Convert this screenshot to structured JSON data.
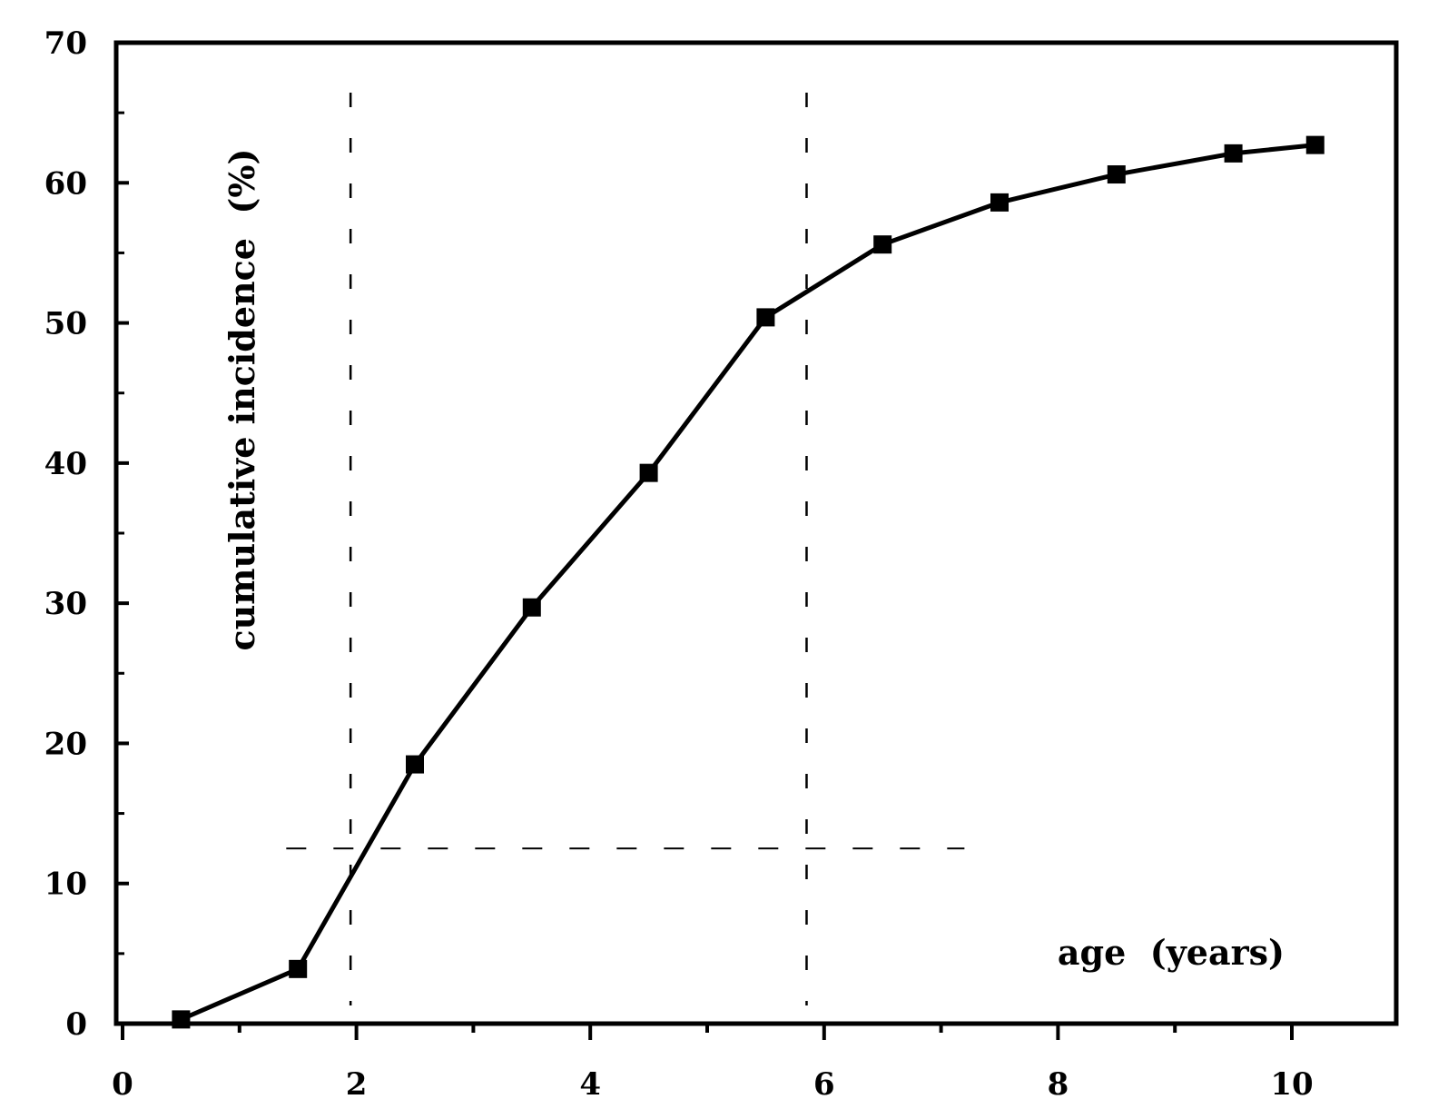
{
  "chart_data": {
    "type": "line",
    "xlabel": "age  (years)",
    "ylabel": "cumulative incidence  (%)",
    "xlim": [
      0,
      11
    ],
    "ylim": [
      0,
      70
    ],
    "x_ticks": [
      "0",
      "2",
      "4",
      "6",
      "8",
      "10"
    ],
    "y_ticks": [
      "0",
      "10",
      "20",
      "30",
      "40",
      "50",
      "60",
      "70"
    ],
    "reference_lines_x": [
      1.95,
      5.85
    ],
    "reference_line_y": 12.5,
    "grid": false,
    "series": [
      {
        "x": [
          0.5,
          1.5,
          2.5,
          3.5,
          4.5,
          5.5,
          6.5,
          7.5,
          8.5,
          9.5,
          10.2
        ],
        "y": [
          0.3,
          3.9,
          18.5,
          29.7,
          39.3,
          50.4,
          55.6,
          58.6,
          60.6,
          62.1,
          62.7
        ],
        "marker": "square",
        "color": "#000000"
      }
    ]
  }
}
